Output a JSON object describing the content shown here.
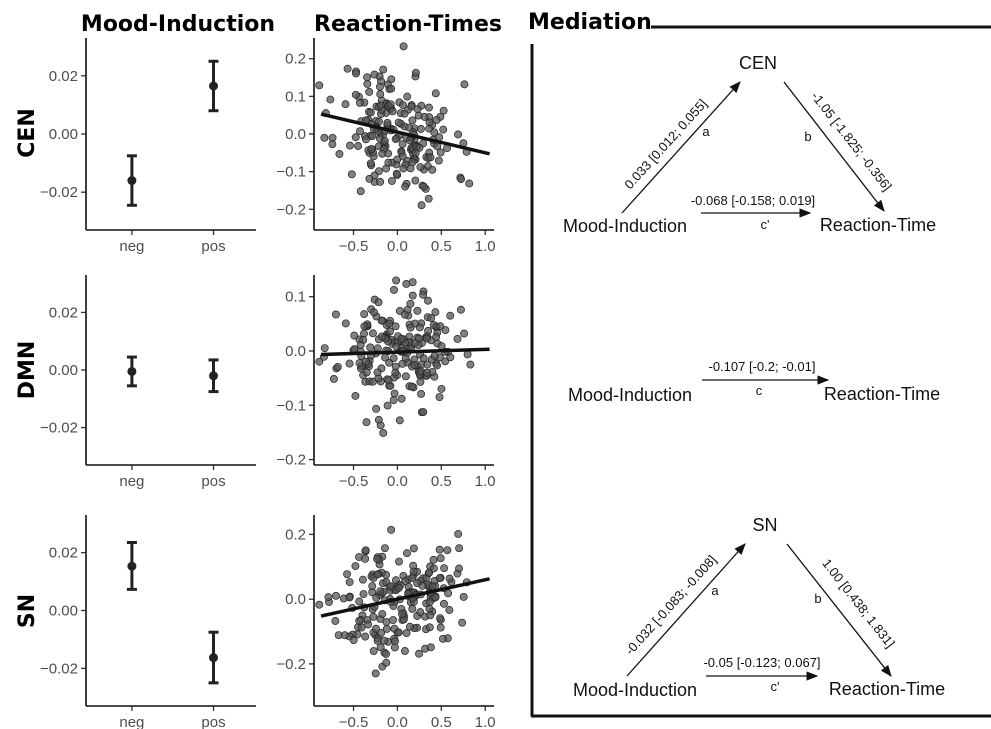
{
  "titles": {
    "col1": "Mood-Induction",
    "col2": "Reaction-Times",
    "col3": "Mediation"
  },
  "rows": [
    "CEN",
    "DMN",
    "SN"
  ],
  "chart_data": [
    {
      "type": "errorbar",
      "panel": "CEN mood-induction",
      "categories": [
        "neg",
        "pos"
      ],
      "values": [
        -0.016,
        0.0165
      ],
      "lower": [
        -0.0245,
        0.008
      ],
      "upper": [
        -0.0075,
        0.025
      ],
      "ylim": [
        -0.033,
        0.033
      ],
      "yticks": [
        0.02,
        0.0,
        -0.02
      ],
      "ytick_labels": [
        "0.02",
        "0.00",
        "−0.02"
      ]
    },
    {
      "type": "errorbar",
      "panel": "DMN mood-induction",
      "categories": [
        "neg",
        "pos"
      ],
      "values": [
        -0.0005,
        -0.002
      ],
      "lower": [
        -0.0055,
        -0.0075
      ],
      "upper": [
        0.0045,
        0.0035
      ],
      "ylim": [
        -0.033,
        0.033
      ],
      "yticks": [
        0.02,
        0.0,
        -0.02
      ],
      "ytick_labels": [
        "0.02",
        "0.00",
        "−0.02"
      ]
    },
    {
      "type": "errorbar",
      "panel": "SN mood-induction",
      "categories": [
        "neg",
        "pos"
      ],
      "values": [
        0.0153,
        -0.0163
      ],
      "lower": [
        0.0073,
        -0.025
      ],
      "upper": [
        0.0235,
        -0.0075
      ],
      "ylim": [
        -0.033,
        0.033
      ],
      "yticks": [
        0.02,
        0.0,
        -0.02
      ],
      "ytick_labels": [
        "0.02",
        "0.00",
        "−0.02"
      ]
    },
    {
      "type": "scatter",
      "panel": "CEN reaction-times",
      "xlim": [
        -0.95,
        1.1
      ],
      "ylim": [
        -0.255,
        0.255
      ],
      "xticks": [
        -0.5,
        0.0,
        0.5,
        1.0
      ],
      "xtick_labels": [
        "−0.5",
        "0.0",
        "0.5",
        "1.0"
      ],
      "yticks": [
        0.2,
        0.1,
        0.0,
        -0.1,
        -0.2
      ],
      "ytick_labels": [
        "0.2",
        "0.1",
        "0.0",
        "−0.1",
        "−0.2"
      ],
      "fit": {
        "slope": -0.055,
        "intercept": 0.005
      },
      "n_points": 200,
      "seed": 11,
      "x_spread": 0.33,
      "noise": 0.085
    },
    {
      "type": "scatter",
      "panel": "DMN reaction-times",
      "xlim": [
        -0.95,
        1.1
      ],
      "ylim": [
        -0.21,
        0.14
      ],
      "xticks": [
        -0.5,
        0.0,
        0.5,
        1.0
      ],
      "xtick_labels": [
        "−0.5",
        "0.0",
        "0.5",
        "1.0"
      ],
      "yticks": [
        0.1,
        0.0,
        -0.1,
        -0.2
      ],
      "ytick_labels": [
        "0.1",
        "0.0",
        "−0.1",
        "−0.2"
      ],
      "fit": {
        "slope": 0.005,
        "intercept": -0.002
      },
      "n_points": 200,
      "seed": 23,
      "x_spread": 0.33,
      "noise": 0.05
    },
    {
      "type": "scatter",
      "panel": "SN reaction-times",
      "xlim": [
        -0.95,
        1.1
      ],
      "ylim": [
        -0.33,
        0.26
      ],
      "xticks": [
        -0.5,
        0.0,
        0.5,
        1.0
      ],
      "xtick_labels": [
        "−0.5",
        "0.0",
        "0.5",
        "1.0"
      ],
      "yticks": [
        0.2,
        0.0,
        -0.2
      ],
      "ytick_labels": [
        "0.2",
        "0.0",
        "−0.2"
      ],
      "fit": {
        "slope": 0.06,
        "intercept": 0.0
      },
      "n_points": 200,
      "seed": 37,
      "x_spread": 0.33,
      "noise": 0.09
    }
  ],
  "mediation": {
    "cen": {
      "mediator": "CEN",
      "x_label": "Mood-Induction",
      "y_label": "Reaction-Time",
      "a_coef": "0.033 [0.012; 0.055]",
      "a": "a",
      "b_coef": "-1.05 [-1.825; -0.356]",
      "b": "b",
      "c_coef": "-0.068 [-0.158; 0.019]",
      "c": "c'"
    },
    "dmn": {
      "x_label": "Mood-Induction",
      "y_label": "Reaction-Time",
      "c_coef": "-0.107 [-0.2; -0.01]",
      "c": "c"
    },
    "sn": {
      "mediator": "SN",
      "x_label": "Mood-Induction",
      "y_label": "Reaction-Time",
      "a_coef": "-0.032 [-0.083; -0.008]",
      "a": "a",
      "b_coef": "1.00 [0.438; 1.831]",
      "b": "b",
      "c_coef": "-0.05 [-0.123; 0.067]",
      "c": "c'"
    }
  }
}
